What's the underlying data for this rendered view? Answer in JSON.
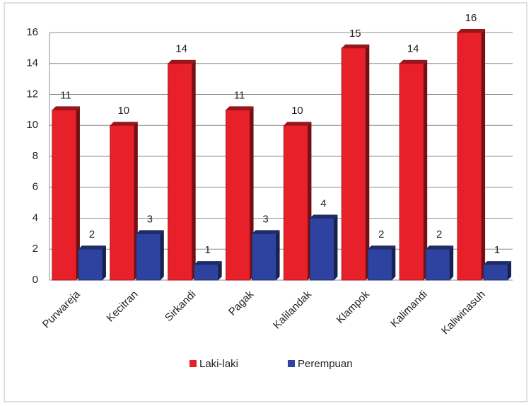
{
  "chart_data": {
    "type": "bar",
    "categories": [
      "Purwareja",
      "Kecitran",
      "Sirkandi",
      "Pagak",
      "Kalilandak",
      "Klampok",
      "Kalimandi",
      "Kaliwinasuh"
    ],
    "series": [
      {
        "name": "Laki-laki",
        "color": "#e8202a",
        "values": [
          11,
          10,
          14,
          11,
          10,
          15,
          14,
          16
        ]
      },
      {
        "name": "Perempuan",
        "color": "#2e43a0",
        "values": [
          2,
          3,
          1,
          3,
          4,
          2,
          2,
          1
        ]
      }
    ],
    "ylim": [
      0,
      16
    ],
    "yticks": [
      0,
      2,
      4,
      6,
      8,
      10,
      12,
      14,
      16
    ],
    "grid": true,
    "legend": "bottom"
  }
}
